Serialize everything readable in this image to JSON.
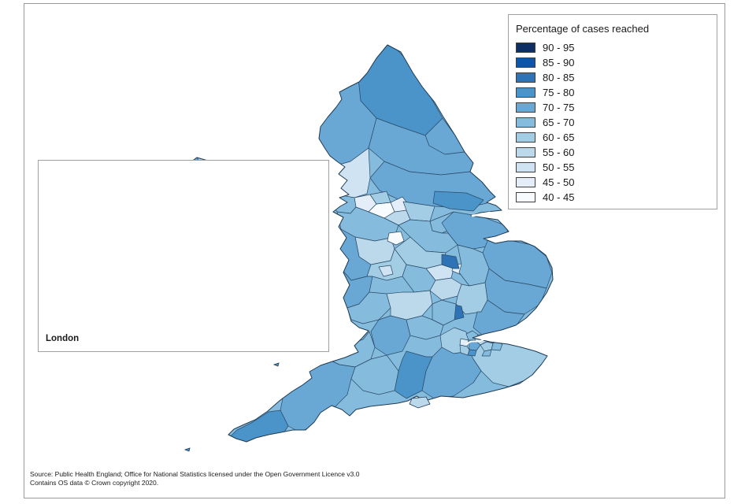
{
  "legend": {
    "title": "Percentage of cases reached",
    "items": [
      {
        "label": "90 - 95",
        "color": "#0d2f63"
      },
      {
        "label": "85 - 90",
        "color": "#0f56a8"
      },
      {
        "label": "80 - 85",
        "color": "#2e73b6"
      },
      {
        "label": "75 - 80",
        "color": "#4a94ca"
      },
      {
        "label": "70 - 75",
        "color": "#69a8d4"
      },
      {
        "label": "65 - 70",
        "color": "#85bcdd"
      },
      {
        "label": "60 - 65",
        "color": "#a2cde5"
      },
      {
        "label": "55 - 60",
        "color": "#bcd9ec"
      },
      {
        "label": "50 - 55",
        "color": "#cfe3f2"
      },
      {
        "label": "45 - 50",
        "color": "#e3eef8"
      },
      {
        "label": "40 - 45",
        "color": "#f8fbfe"
      }
    ]
  },
  "inset": {
    "label": "London"
  },
  "source": {
    "line1": "Source: Public Health England; Office for National Statistics licensed under the Open Government Licence v3.0",
    "line2": "Contains OS data © Crown copyright 2020."
  },
  "map": {
    "region_border_color": "#2a4a66",
    "coast_color": "#1d3a55",
    "water_color": "#ffffff"
  }
}
